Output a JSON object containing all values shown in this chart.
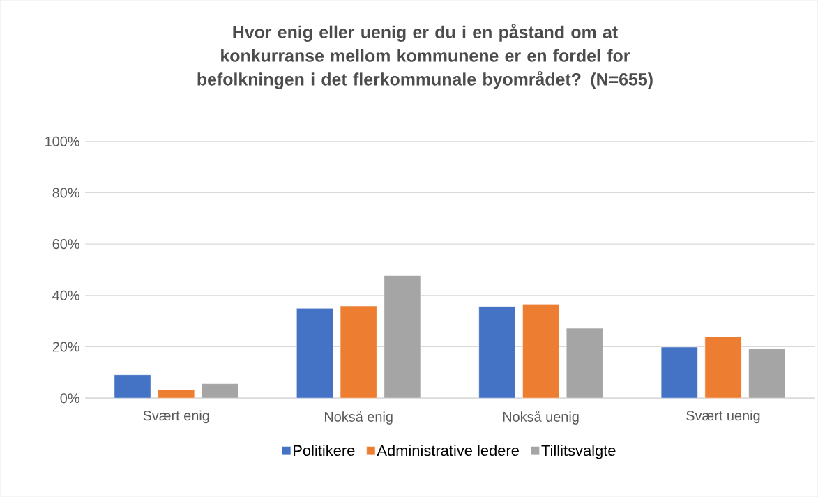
{
  "chart_data": {
    "type": "bar",
    "title": "Hvor enig eller uenig er du i en påstand om at konkurranse mellom kommunene er en fordel for befolkningen i det flerkommunale byområdet? (N=655)",
    "categories": [
      "Svært enig",
      "Nokså enig",
      "Nokså uenig",
      "Svært uenig"
    ],
    "series": [
      {
        "name": "Politikere",
        "color": "#4472c4",
        "values": [
          9.1,
          35.0,
          35.7,
          19.9
        ]
      },
      {
        "name": "Administrative ledere",
        "color": "#ed7d31",
        "values": [
          3.3,
          35.9,
          36.6,
          23.9
        ]
      },
      {
        "name": "Tillitsvalgte",
        "color": "#a5a5a5",
        "values": [
          5.6,
          47.7,
          27.2,
          19.3
        ]
      }
    ],
    "ylim": [
      0,
      100
    ],
    "yticks": [
      {
        "value": 0,
        "label": "0%"
      },
      {
        "value": 20,
        "label": "20%"
      },
      {
        "value": 40,
        "label": "40%"
      },
      {
        "value": 60,
        "label": "60%"
      },
      {
        "value": 80,
        "label": "80%"
      },
      {
        "value": 100,
        "label": "100%"
      }
    ],
    "grid": "y",
    "legend": "bottom"
  }
}
